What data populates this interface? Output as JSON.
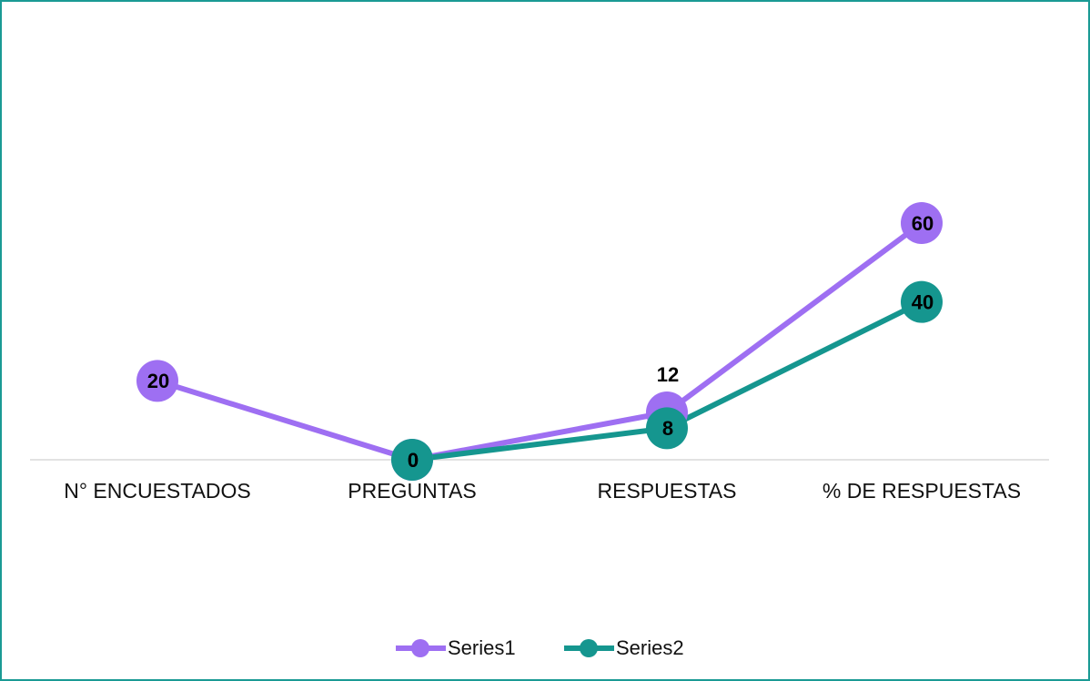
{
  "chart_data": {
    "type": "line",
    "categories": [
      "N° ENCUESTADOS",
      "PREGUNTAS",
      "RESPUESTAS",
      "% DE RESPUESTAS"
    ],
    "series": [
      {
        "name": "Series1",
        "color": "#9e6ff2",
        "values": [
          20,
          0,
          12,
          60
        ]
      },
      {
        "name": "Series2",
        "color": "#15968f",
        "values": [
          null,
          0,
          8,
          40
        ]
      }
    ],
    "ylim": [
      0,
      60
    ]
  }
}
